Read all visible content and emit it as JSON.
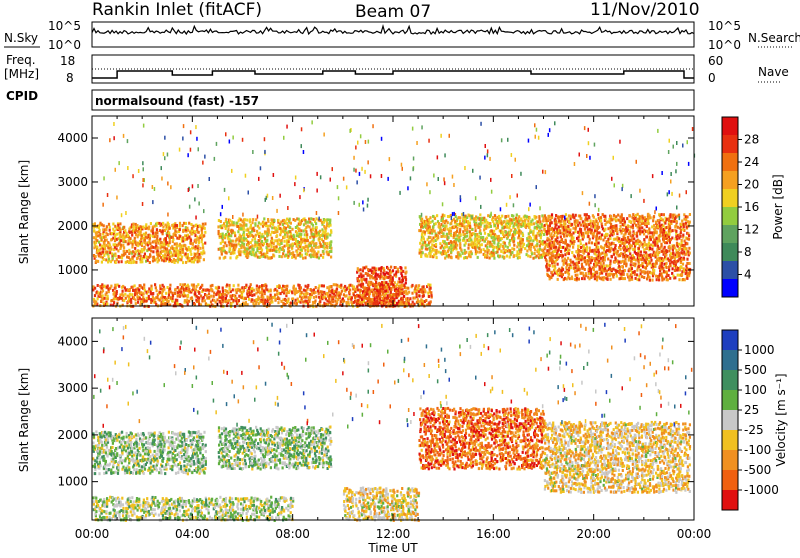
{
  "header": {
    "station": "Rankin Inlet (fitACF)",
    "beam": "Beam 07",
    "date": "11/Nov/2010"
  },
  "top_panels": {
    "nsky_label": "N.Sky",
    "nsky_ticks": [
      "10^5",
      "10^0"
    ],
    "nsearch_label": "N.Search",
    "nsearch_ticks": [
      "10^5",
      "10^0"
    ],
    "freq_label": "Freq.",
    "freq_unit": "[MHz]",
    "freq_ticks": [
      "18",
      "8"
    ],
    "nave_label": "Nave",
    "nave_ticks": [
      "60",
      "0"
    ],
    "cpid_label": "CPID",
    "cpid_value": "normalsound (fast) -157"
  },
  "colors": {
    "power_scale": [
      "#0000ff",
      "#2c4fa6",
      "#3f8a5a",
      "#5fa35f",
      "#92cc3f",
      "#f0d020",
      "#f5a020",
      "#f07010",
      "#e83010",
      "#e01010"
    ],
    "velocity_scale": [
      "#1f3fbf",
      "#2f6f8f",
      "#3f8f5f",
      "#5faf3f",
      "#c8c8c8",
      "#f0c020",
      "#f09020",
      "#f06010",
      "#e01010"
    ]
  },
  "chart_data": [
    {
      "type": "heatmap",
      "title": "",
      "xlabel": "Time UT",
      "ylabel": "Slant Range [km]",
      "x_ticks": [
        "00:00",
        "04:00",
        "08:00",
        "12:00",
        "16:00",
        "20:00",
        "00:00"
      ],
      "y_ticks": [
        "1000",
        "2000",
        "3000",
        "4000"
      ],
      "ylim": [
        180,
        4500
      ],
      "colorbar": {
        "label": "Power [dB]",
        "ticks": [
          "4",
          "8",
          "12",
          "16",
          "20",
          "24",
          "28"
        ],
        "range": [
          0,
          30
        ]
      },
      "features": [
        {
          "x_hours": [
            0.0,
            4.5
          ],
          "y_km": [
            1200,
            2100
          ],
          "value": 20
        },
        {
          "x_hours": [
            0.0,
            13.5
          ],
          "y_km": [
            200,
            700
          ],
          "value": 22
        },
        {
          "x_hours": [
            5.0,
            9.5
          ],
          "y_km": [
            1300,
            2200
          ],
          "value": 18
        },
        {
          "x_hours": [
            10.5,
            12.5
          ],
          "y_km": [
            200,
            1100
          ],
          "value": 24
        },
        {
          "x_hours": [
            13.0,
            18.0
          ],
          "y_km": [
            1300,
            2300
          ],
          "value": 18
        },
        {
          "x_hours": [
            18.0,
            23.8
          ],
          "y_km": [
            800,
            2300
          ],
          "value": 22
        }
      ]
    },
    {
      "type": "heatmap",
      "title": "",
      "xlabel": "Time UT",
      "ylabel": "Slant Range [km]",
      "x_ticks": [
        "00:00",
        "04:00",
        "08:00",
        "12:00",
        "16:00",
        "20:00",
        "00:00"
      ],
      "y_ticks": [
        "1000",
        "2000",
        "3000",
        "4000"
      ],
      "ylim": [
        180,
        4500
      ],
      "colorbar": {
        "label": "Velocity [m s⁻¹]",
        "ticks": [
          "1000",
          "500",
          "100",
          "25",
          "-25",
          "-100",
          "-500",
          "-1000"
        ],
        "range": [
          -1000,
          1000
        ]
      },
      "features": [
        {
          "x_hours": [
            0.0,
            4.5
          ],
          "y_km": [
            1200,
            2100
          ],
          "value": 150
        },
        {
          "x_hours": [
            0.0,
            8.0
          ],
          "y_km": [
            200,
            700
          ],
          "value": 50
        },
        {
          "x_hours": [
            5.0,
            9.5
          ],
          "y_km": [
            1300,
            2200
          ],
          "value": 150
        },
        {
          "x_hours": [
            10.0,
            13.0
          ],
          "y_km": [
            200,
            900
          ],
          "value": -150
        },
        {
          "x_hours": [
            13.0,
            18.0
          ],
          "y_km": [
            1300,
            2600
          ],
          "value": -600
        },
        {
          "x_hours": [
            18.0,
            23.8
          ],
          "y_km": [
            800,
            2300
          ],
          "value": -200
        }
      ]
    }
  ]
}
